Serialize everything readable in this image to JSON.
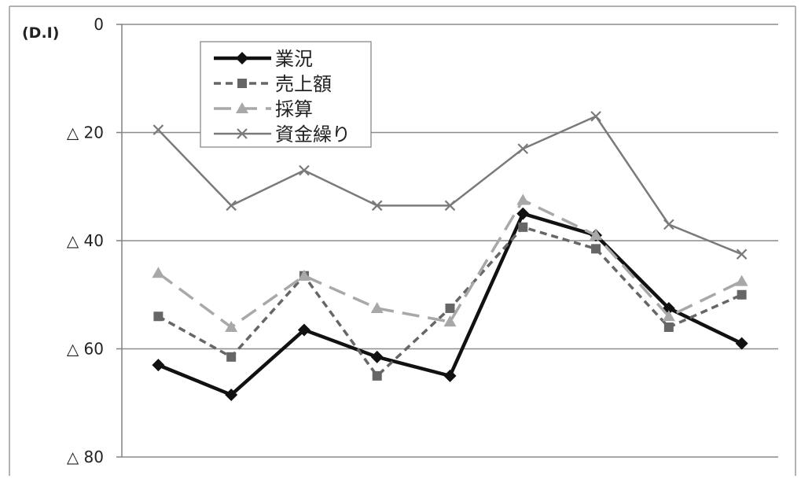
{
  "chart_data": {
    "type": "line",
    "unit_label": "(D.I)",
    "title": "",
    "xlabel": "",
    "ylabel": "",
    "ylim": [
      -80,
      0
    ],
    "y_ticks": [
      {
        "value": 0,
        "label": "0"
      },
      {
        "value": -20,
        "label": "△ 20"
      },
      {
        "value": -40,
        "label": "△ 40"
      },
      {
        "value": -60,
        "label": "△ 60"
      },
      {
        "value": -80,
        "label": "△ 80"
      }
    ],
    "grid": true,
    "legend_position": "top-left",
    "x": [
      1,
      2,
      3,
      4,
      5,
      6,
      7,
      8,
      9
    ],
    "series": [
      {
        "name": "業況",
        "values": [
          -63,
          -68.5,
          -56.5,
          -61.5,
          -65,
          -35,
          -39,
          -52.5,
          -59
        ],
        "color": "#111111",
        "marker": "diamond",
        "dash": "solid"
      },
      {
        "name": "売上額",
        "values": [
          -54,
          -61.5,
          -46.5,
          -65,
          -52.5,
          -37.5,
          -41.5,
          -56,
          -50
        ],
        "color": "#666666",
        "marker": "square",
        "dash": "dashed"
      },
      {
        "name": "採算",
        "values": [
          -46,
          -56,
          -46.5,
          -52.5,
          -55,
          -32.5,
          -39,
          -54,
          -47.5
        ],
        "color": "#a8a8a8",
        "marker": "triangle",
        "dash": "long-dash"
      },
      {
        "name": "資金繰り",
        "values": [
          -19.5,
          -33.5,
          -27,
          -33.5,
          -33.5,
          -23,
          -17,
          -37,
          -42.5
        ],
        "color": "#7a7a7a",
        "marker": "x",
        "dash": "solid"
      }
    ]
  }
}
